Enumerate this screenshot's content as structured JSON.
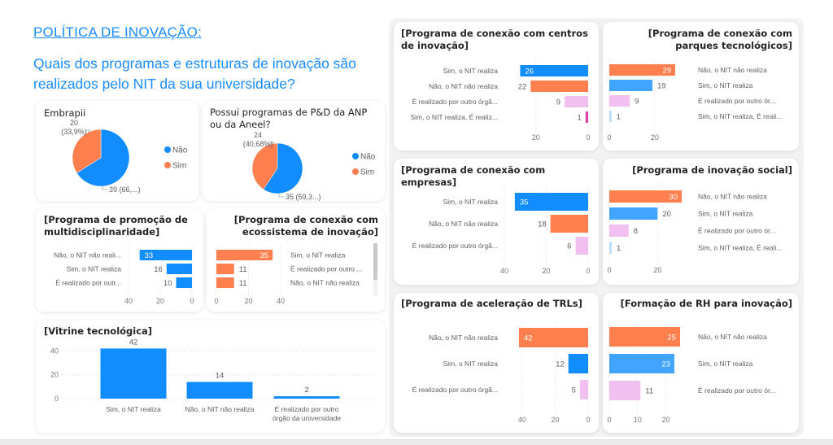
{
  "header": {
    "title": "POLÍTICA DE INOVAÇÃO:",
    "question": "Quais dos programas e estruturas de inovação são realizados pelo NIT da sua universidade?"
  },
  "colors": {
    "accent": "#1a8cff",
    "blue": "#118DFF",
    "orange": "#FF7F4F",
    "light_blue": "#41A4FF",
    "pink": "#F2C0F0",
    "magenta": "#E044A7",
    "pale_blue": "#BFDDFA"
  },
  "chart_data": [
    {
      "id": "embrapii",
      "type": "pie",
      "title": "Embrapii",
      "slices": [
        {
          "name": "Não",
          "value": 39,
          "label": "39 (66,...)",
          "color": "#118DFF"
        },
        {
          "name": "Sim",
          "value": 20,
          "label": "20 (33,9%)",
          "color": "#FF7F4F"
        }
      ],
      "legend": [
        "Não",
        "Sim"
      ],
      "legend_position": "right"
    },
    {
      "id": "anp_aneel",
      "type": "pie",
      "title": "Possui programas de P&D da ANP ou da Aneel?",
      "slices": [
        {
          "name": "Não",
          "value": 35,
          "label": "35 (59,3...)",
          "color": "#118DFF"
        },
        {
          "name": "Sim",
          "value": 24,
          "label": "24 (40,68%)",
          "color": "#FF7F4F"
        }
      ],
      "legend": [
        "Não",
        "Sim"
      ],
      "legend_position": "right"
    },
    {
      "id": "multidisciplinaridade",
      "type": "bar",
      "orientation": "horizontal-reversed",
      "title": "[Programa de promoção de multidisciplinaridade]",
      "categories": [
        "Não, o NIT não reali...",
        "Sim, o NIT realiza",
        "É realizado por outr..."
      ],
      "values": [
        33,
        16,
        10
      ],
      "colors": [
        "#118DFF",
        "#118DFF",
        "#118DFF"
      ],
      "ticks": [
        40,
        20,
        0
      ],
      "xlim": [
        0,
        40
      ]
    },
    {
      "id": "ecossistema",
      "type": "bar",
      "orientation": "horizontal",
      "title": "[Programa de conexão com ecossistema de inovação]",
      "categories": [
        "Sim, o NIT realiza",
        "É realizado por outro ...",
        "Não, o NIT não realiza"
      ],
      "values": [
        35,
        11,
        11
      ],
      "colors": [
        "#FF7F4F",
        "#FF7F4F",
        "#FF7F4F"
      ],
      "ticks": [
        0,
        20,
        40
      ],
      "xlim": [
        0,
        40
      ]
    },
    {
      "id": "vitrine",
      "type": "bar",
      "orientation": "vertical",
      "title": "[Vitrine tecnológica]",
      "categories": [
        "Sim, o NIT realiza",
        "Não, o NIT não realiza",
        "É realizado por outro órgão da universidade"
      ],
      "values": [
        42,
        14,
        2
      ],
      "colors": [
        "#118DFF",
        "#118DFF",
        "#118DFF"
      ],
      "ticks": [
        0,
        20,
        40
      ],
      "ylim": [
        0,
        45
      ]
    },
    {
      "id": "centros",
      "type": "bar",
      "orientation": "horizontal-reversed",
      "title": "[Programa de conexão com centros de inovação]",
      "categories": [
        "Sim, o NIT realiza",
        "Não, o NIT não realiza",
        "É realizado por outro órgã...",
        "Sim, o NIT realiza, É realiz..."
      ],
      "values": [
        26,
        22,
        9,
        1
      ],
      "colors": [
        "#118DFF",
        "#FF7F4F",
        "#F2C0F0",
        "#E044A7"
      ],
      "ticks": [
        20,
        0
      ],
      "xlim": [
        0,
        28
      ]
    },
    {
      "id": "parques",
      "type": "bar",
      "orientation": "horizontal",
      "title": "[Programa de conexão com parques tecnológicos]",
      "categories": [
        "Não, o NIT não realiza",
        "Sim, o NIT realiza",
        "É realizado por outro ór...",
        "Sim, o NIT realiza, É reali..."
      ],
      "values": [
        29,
        19,
        9,
        1
      ],
      "colors": [
        "#FF7F4F",
        "#41A4FF",
        "#F2C0F0",
        "#BFDDFA"
      ],
      "ticks": [
        0,
        20
      ],
      "xlim": [
        0,
        29
      ]
    },
    {
      "id": "empresas",
      "type": "bar",
      "orientation": "horizontal-reversed",
      "title": "[Programa de conexão com empresas]",
      "categories": [
        "Sim, o NIT realiza",
        "Não, o NIT não realiza",
        "É realizado por outro órgã..."
      ],
      "values": [
        35,
        18,
        6
      ],
      "colors": [
        "#118DFF",
        "#FF7F4F",
        "#F2C0F0"
      ],
      "ticks": [
        40,
        20,
        0
      ],
      "xlim": [
        0,
        40
      ]
    },
    {
      "id": "social",
      "type": "bar",
      "orientation": "horizontal",
      "title": "[Programa de inovação social]",
      "categories": [
        "Não, o NIT não realiza",
        "Sim, o NIT realiza",
        "É realizado por outro ór...",
        "Sim, o NIT realiza, É reali..."
      ],
      "values": [
        30,
        20,
        8,
        1
      ],
      "colors": [
        "#FF7F4F",
        "#41A4FF",
        "#F2C0F0",
        "#BFDDFA"
      ],
      "ticks": [
        0,
        20
      ],
      "xlim": [
        0,
        30
      ]
    },
    {
      "id": "trls",
      "type": "bar",
      "orientation": "horizontal-reversed",
      "title": "[Programa de aceleração de TRLs]",
      "categories": [
        "Não, o NIT não realiza",
        "Sim, o NIT realiza",
        "É realizado por outro órgã..."
      ],
      "values": [
        42,
        12,
        5
      ],
      "colors": [
        "#FF7F4F",
        "#118DFF",
        "#F2C0F0"
      ],
      "ticks": [
        40,
        20,
        0
      ],
      "xlim": [
        0,
        42
      ]
    },
    {
      "id": "rh",
      "type": "bar",
      "orientation": "horizontal",
      "title": "[Formação de RH para inovação]",
      "categories": [
        "Não, o NIT não realiza",
        "Sim, o NIT realiza",
        "É realizado por outro ór..."
      ],
      "values": [
        25,
        23,
        11
      ],
      "colors": [
        "#FF7F4F",
        "#41A4FF",
        "#F2C0F0"
      ],
      "ticks": [
        0,
        10,
        20
      ],
      "xlim": [
        0,
        25
      ]
    }
  ]
}
